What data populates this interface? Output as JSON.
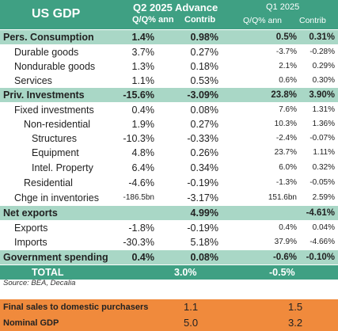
{
  "header": {
    "title": "US GDP",
    "q2_line1": "Q2 2025 Advance",
    "q2_col1": "Q/Q% ann",
    "q2_col2": "Contrib",
    "q1_line1": "Q1 2025",
    "q1_col1": "Q/Q% ann",
    "q1_col2": "Contrib"
  },
  "rows": [
    {
      "label": "Pers. Consumption",
      "q2_ann": "1.4%",
      "q2_contrib": "0.98%",
      "q1_ann": "0.5%",
      "q1_contrib": "0.31%"
    },
    {
      "label": "Durable goods",
      "q2_ann": "3.7%",
      "q2_contrib": "0.27%",
      "q1_ann": "-3.7%",
      "q1_contrib": "-0.28%"
    },
    {
      "label": "Nondurable goods",
      "q2_ann": "1.3%",
      "q2_contrib": "0.18%",
      "q1_ann": "2.1%",
      "q1_contrib": "0.29%"
    },
    {
      "label": "Services",
      "q2_ann": "1.1%",
      "q2_contrib": "0.53%",
      "q1_ann": "0.6%",
      "q1_contrib": "0.30%"
    },
    {
      "label": "Priv. Investments",
      "q2_ann": "-15.6%",
      "q2_contrib": "-3.09%",
      "q1_ann": "23.8%",
      "q1_contrib": "3.90%"
    },
    {
      "label": "Fixed investments",
      "q2_ann": "0.4%",
      "q2_contrib": "0.08%",
      "q1_ann": "7.6%",
      "q1_contrib": "1.31%"
    },
    {
      "label": "Non-residential",
      "q2_ann": "1.9%",
      "q2_contrib": "0.27%",
      "q1_ann": "10.3%",
      "q1_contrib": "1.36%"
    },
    {
      "label": "Structures",
      "q2_ann": "-10.3%",
      "q2_contrib": "-0.33%",
      "q1_ann": "-2.4%",
      "q1_contrib": "-0.07%"
    },
    {
      "label": "Equipment",
      "q2_ann": "4.8%",
      "q2_contrib": "0.26%",
      "q1_ann": "23.7%",
      "q1_contrib": "1.11%"
    },
    {
      "label": "Intel. Property",
      "q2_ann": "6.4%",
      "q2_contrib": "0.34%",
      "q1_ann": "6.0%",
      "q1_contrib": "0.32%"
    },
    {
      "label": "Residential",
      "q2_ann": "-4.6%",
      "q2_contrib": "-0.19%",
      "q1_ann": "-1.3%",
      "q1_contrib": "-0.05%"
    },
    {
      "label": "Chge in inventories",
      "q2_ann": "-186.5bn",
      "q2_contrib": "-3.17%",
      "q1_ann": "151.6bn",
      "q1_contrib": "2.59%"
    },
    {
      "label": "Net exports",
      "q2_ann": "",
      "q2_contrib": "4.99%",
      "q1_ann": "",
      "q1_contrib": "-4.61%"
    },
    {
      "label": "Exports",
      "q2_ann": "-1.8%",
      "q2_contrib": "-0.19%",
      "q1_ann": "0.4%",
      "q1_contrib": "0.04%"
    },
    {
      "label": "Imports",
      "q2_ann": "-30.3%",
      "q2_contrib": "5.18%",
      "q1_ann": "37.9%",
      "q1_contrib": "-4.66%"
    },
    {
      "label": "Government spending",
      "q2_ann": "0.4%",
      "q2_contrib": "0.08%",
      "q1_ann": "-0.6%",
      "q1_contrib": "-0.10%"
    },
    {
      "label": "TOTAL",
      "q2_ann": "3.0%",
      "q2_contrib": "",
      "q1_ann": "-0.5%",
      "q1_contrib": ""
    }
  ],
  "source": "Source: BEA, Decalia",
  "footer": [
    {
      "label": "Final sales to domestic purchasers",
      "q2": "1.1",
      "q1": "1.5"
    },
    {
      "label": "Nominal GDP",
      "q2": "5.0",
      "q1": "3.2"
    }
  ],
  "colors": {
    "header": "#3fa083",
    "highlight": "#a9d7c6",
    "footer": "#f08a3c"
  }
}
